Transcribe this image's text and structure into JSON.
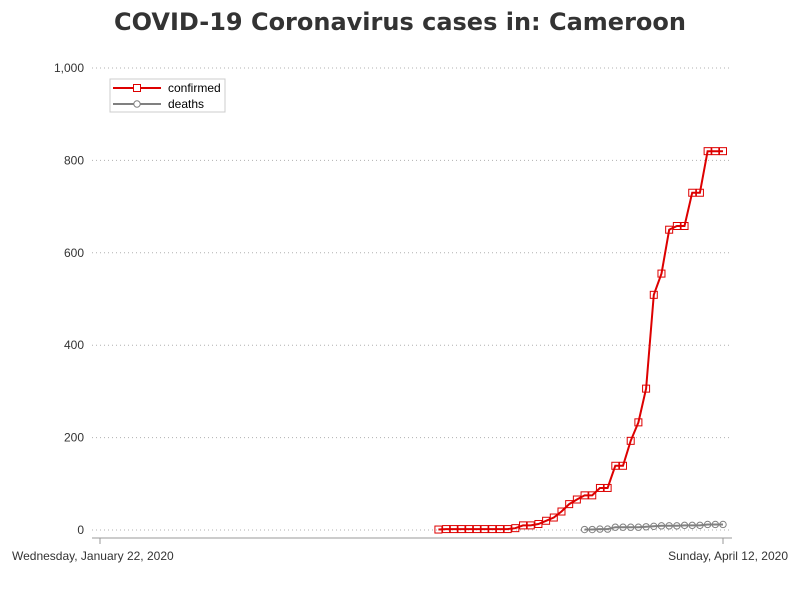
{
  "chart_data": {
    "type": "line",
    "title": "COVID-19 Coronavirus cases in: Cameroon",
    "xlabel": "",
    "ylabel": "",
    "x_tick_labels": [
      "Wednesday, January 22, 2020",
      "Sunday, April 12, 2020"
    ],
    "x_range": [
      "2020-01-22",
      "2020-04-12"
    ],
    "ylim": [
      0,
      1000
    ],
    "y_ticks": [
      0,
      200,
      400,
      600,
      800,
      1000
    ],
    "y_tick_labels": [
      "0",
      "200",
      "400",
      "600",
      "800",
      "1,000"
    ],
    "grid": "horizontal dotted",
    "legend_position": "top-left",
    "series": [
      {
        "name": "confirmed",
        "color": "#dd0000",
        "marker": "square",
        "points": [
          [
            "2020-03-06",
            1
          ],
          [
            "2020-03-07",
            2
          ],
          [
            "2020-03-08",
            2
          ],
          [
            "2020-03-09",
            2
          ],
          [
            "2020-03-10",
            2
          ],
          [
            "2020-03-11",
            2
          ],
          [
            "2020-03-12",
            2
          ],
          [
            "2020-03-13",
            2
          ],
          [
            "2020-03-14",
            2
          ],
          [
            "2020-03-15",
            2
          ],
          [
            "2020-03-16",
            4
          ],
          [
            "2020-03-17",
            10
          ],
          [
            "2020-03-18",
            10
          ],
          [
            "2020-03-19",
            13
          ],
          [
            "2020-03-20",
            20
          ],
          [
            "2020-03-21",
            27
          ],
          [
            "2020-03-22",
            40
          ],
          [
            "2020-03-23",
            56
          ],
          [
            "2020-03-24",
            66
          ],
          [
            "2020-03-25",
            75
          ],
          [
            "2020-03-26",
            75
          ],
          [
            "2020-03-27",
            91
          ],
          [
            "2020-03-28",
            91
          ],
          [
            "2020-03-29",
            139
          ],
          [
            "2020-03-30",
            139
          ],
          [
            "2020-03-31",
            193
          ],
          [
            "2020-04-01",
            233
          ],
          [
            "2020-04-02",
            306
          ],
          [
            "2020-04-03",
            509
          ],
          [
            "2020-04-04",
            555
          ],
          [
            "2020-04-05",
            650
          ],
          [
            "2020-04-06",
            658
          ],
          [
            "2020-04-07",
            658
          ],
          [
            "2020-04-08",
            730
          ],
          [
            "2020-04-09",
            730
          ],
          [
            "2020-04-10",
            820
          ],
          [
            "2020-04-11",
            820
          ],
          [
            "2020-04-12",
            820
          ]
        ]
      },
      {
        "name": "deaths",
        "color": "#808080",
        "marker": "circle",
        "points": [
          [
            "2020-03-25",
            1
          ],
          [
            "2020-03-26",
            1
          ],
          [
            "2020-03-27",
            2
          ],
          [
            "2020-03-28",
            2
          ],
          [
            "2020-03-29",
            6
          ],
          [
            "2020-03-30",
            6
          ],
          [
            "2020-03-31",
            6
          ],
          [
            "2020-04-01",
            6
          ],
          [
            "2020-04-02",
            7
          ],
          [
            "2020-04-03",
            8
          ],
          [
            "2020-04-04",
            9
          ],
          [
            "2020-04-05",
            9
          ],
          [
            "2020-04-06",
            9
          ],
          [
            "2020-04-07",
            10
          ],
          [
            "2020-04-08",
            10
          ],
          [
            "2020-04-09",
            10
          ],
          [
            "2020-04-10",
            12
          ],
          [
            "2020-04-11",
            12
          ],
          [
            "2020-04-12",
            12
          ]
        ]
      }
    ]
  }
}
